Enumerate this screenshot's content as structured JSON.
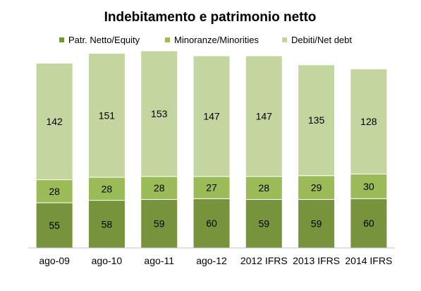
{
  "chart_data": {
    "type": "bar",
    "stacked": true,
    "title": "Indebitamento e patrimonio netto",
    "xlabel": "",
    "ylabel": "",
    "categories": [
      "ago-09",
      "ago-10",
      "ago-11",
      "ago-12",
      "2012 IFRS",
      "2013 IFRS",
      "2014 IFRS"
    ],
    "series": [
      {
        "name": "Patr. Netto/Equity",
        "color": "#77933c",
        "values": [
          55,
          58,
          59,
          60,
          59,
          59,
          60
        ]
      },
      {
        "name": "Minoranze/Minorities",
        "color": "#9bbb59",
        "values": [
          28,
          28,
          28,
          27,
          28,
          29,
          30
        ]
      },
      {
        "name": "Debiti/Net debt",
        "color": "#c4d6a0",
        "values": [
          142,
          151,
          153,
          147,
          147,
          135,
          128
        ]
      }
    ],
    "ylim": [
      0,
      240
    ],
    "grid": false,
    "legend": "top"
  }
}
